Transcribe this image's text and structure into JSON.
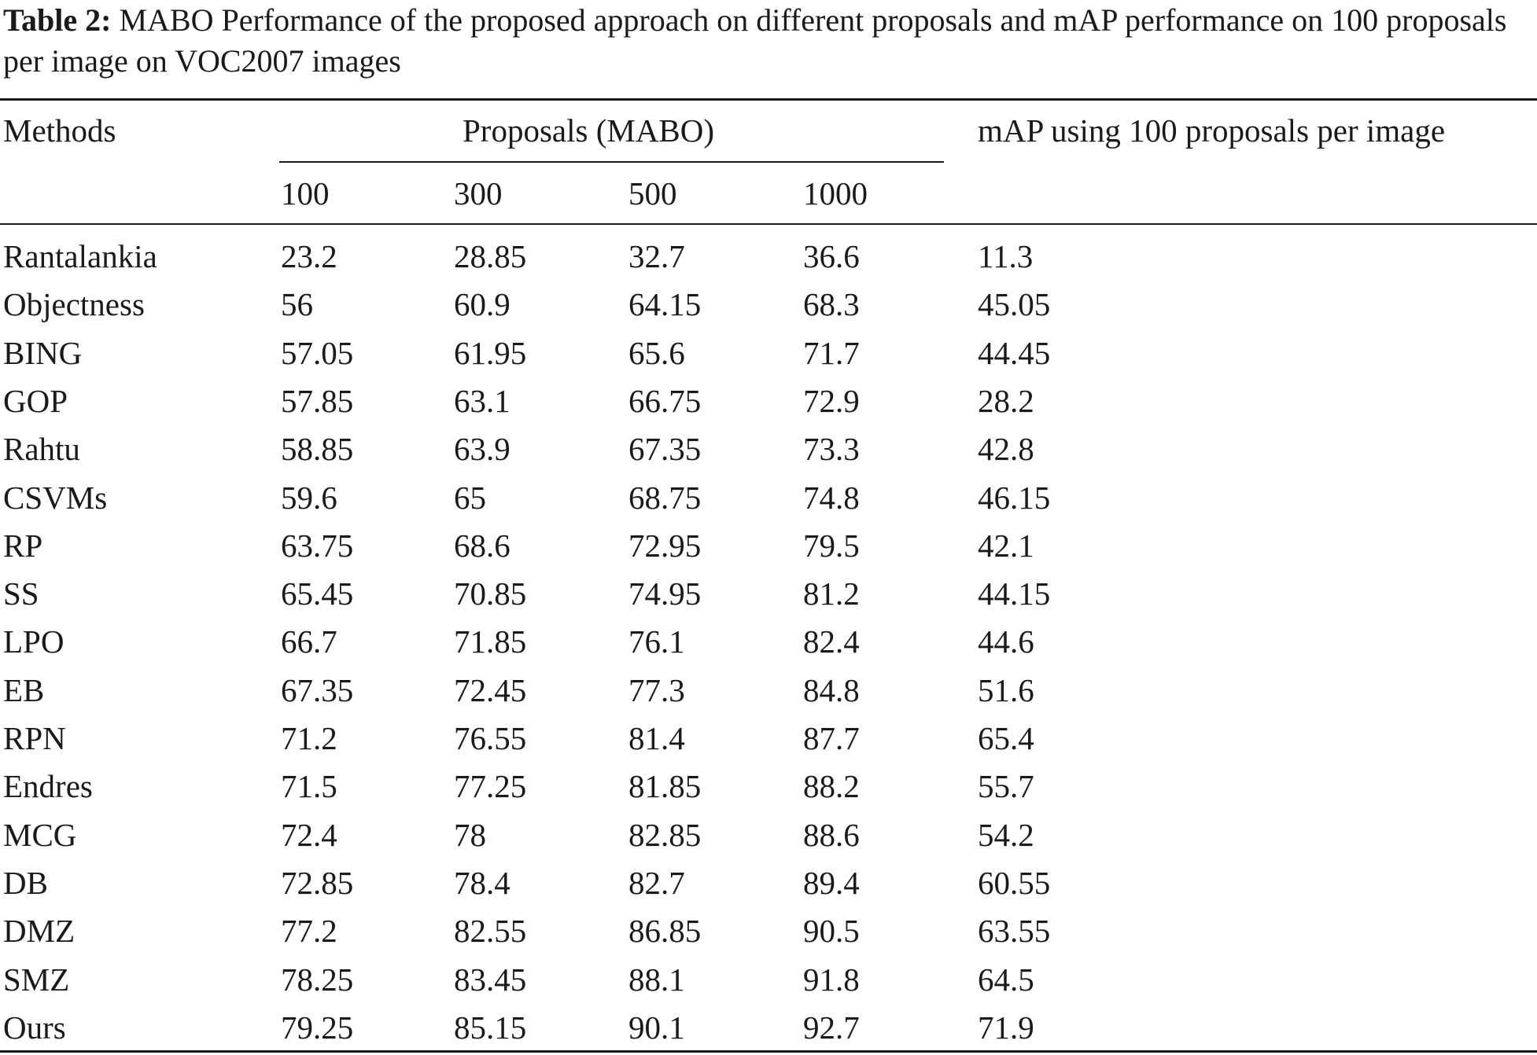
{
  "caption": {
    "label": "Table 2:",
    "text": "MABO Performance of the proposed approach on different proposals and mAP performance on 100 proposals per image on VOC2007 images"
  },
  "table": {
    "header": {
      "methods": "Methods",
      "proposals_group": "Proposals (MABO)",
      "map_group": "mAP using 100 proposals per image",
      "proposal_counts": [
        "100",
        "300",
        "500",
        "1000"
      ]
    },
    "rows": [
      {
        "method": "Rantalankia",
        "values": [
          "23.2",
          "28.85",
          "32.7",
          "36.6"
        ],
        "map": "11.3"
      },
      {
        "method": "Objectness",
        "values": [
          "56",
          "60.9",
          "64.15",
          "68.3"
        ],
        "map": "45.05"
      },
      {
        "method": "BING",
        "values": [
          "57.05",
          "61.95",
          "65.6",
          "71.7"
        ],
        "map": "44.45"
      },
      {
        "method": "GOP",
        "values": [
          "57.85",
          "63.1",
          "66.75",
          "72.9"
        ],
        "map": "28.2"
      },
      {
        "method": "Rahtu",
        "values": [
          "58.85",
          "63.9",
          "67.35",
          "73.3"
        ],
        "map": "42.8"
      },
      {
        "method": "CSVMs",
        "values": [
          "59.6",
          "65",
          "68.75",
          "74.8"
        ],
        "map": "46.15"
      },
      {
        "method": "RP",
        "values": [
          "63.75",
          "68.6",
          "72.95",
          "79.5"
        ],
        "map": "42.1"
      },
      {
        "method": "SS",
        "values": [
          "65.45",
          "70.85",
          "74.95",
          "81.2"
        ],
        "map": "44.15"
      },
      {
        "method": "LPO",
        "values": [
          "66.7",
          "71.85",
          "76.1",
          "82.4"
        ],
        "map": "44.6"
      },
      {
        "method": "EB",
        "values": [
          "67.35",
          "72.45",
          "77.3",
          "84.8"
        ],
        "map": "51.6"
      },
      {
        "method": "RPN",
        "values": [
          "71.2",
          "76.55",
          "81.4",
          "87.7"
        ],
        "map": "65.4"
      },
      {
        "method": "Endres",
        "values": [
          "71.5",
          "77.25",
          "81.85",
          "88.2"
        ],
        "map": "55.7"
      },
      {
        "method": "MCG",
        "values": [
          "72.4",
          "78",
          "82.85",
          "88.6"
        ],
        "map": "54.2"
      },
      {
        "method": "DB",
        "values": [
          "72.85",
          "78.4",
          "82.7",
          "89.4"
        ],
        "map": "60.55"
      },
      {
        "method": "DMZ",
        "values": [
          "77.2",
          "82.55",
          "86.85",
          "90.5"
        ],
        "map": "63.55"
      },
      {
        "method": "SMZ",
        "values": [
          "78.25",
          "83.45",
          "88.1",
          "91.8"
        ],
        "map": "64.5"
      },
      {
        "method": "Ours",
        "values": [
          "79.25",
          "85.15",
          "90.1",
          "92.7"
        ],
        "map": "71.9"
      }
    ]
  }
}
